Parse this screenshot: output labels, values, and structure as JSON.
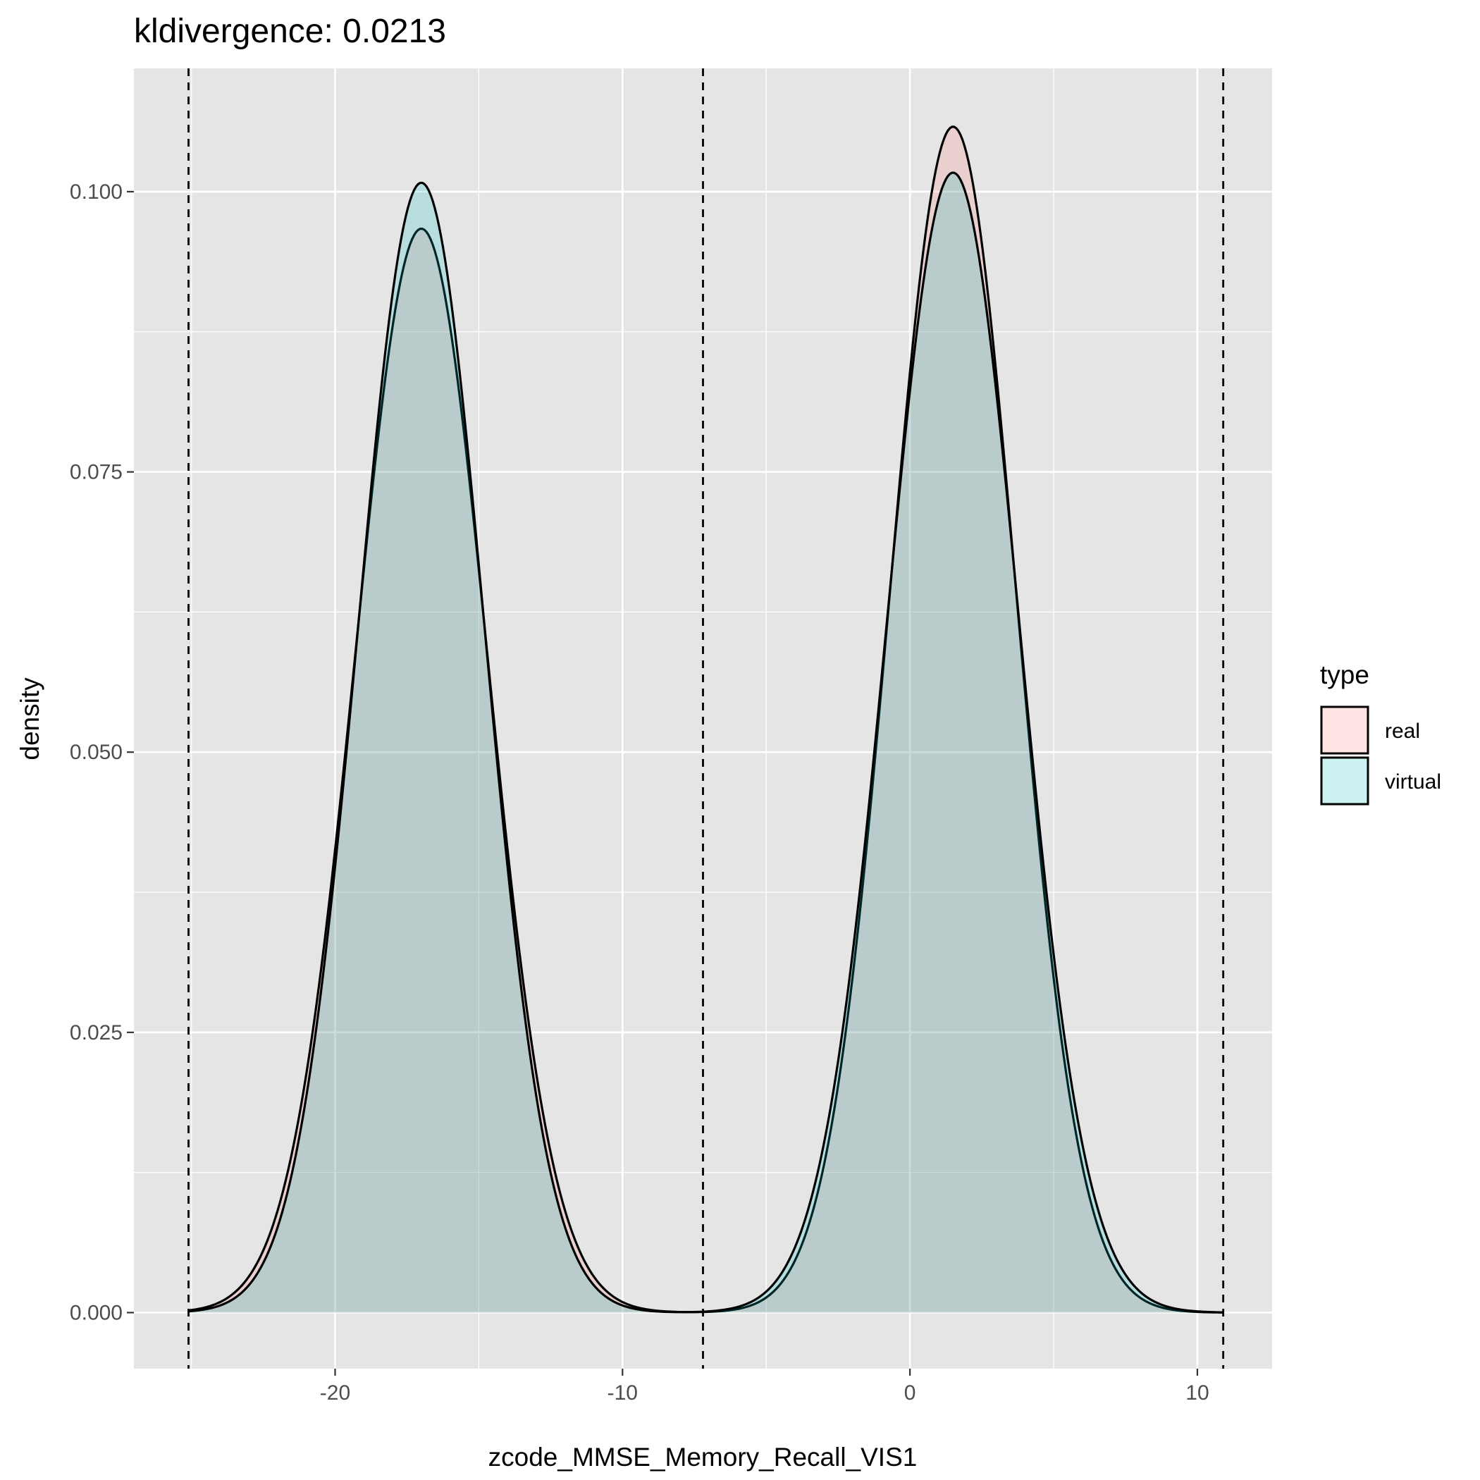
{
  "chart_data": {
    "type": "area",
    "title": "kldivergence: 0.0213",
    "xlabel": "zcode_MMSE_Memory_Recall_VIS1",
    "ylabel": "density",
    "xlim": [
      -27.0,
      12.6
    ],
    "ylim": [
      -0.005,
      0.111
    ],
    "x_ticks": [
      -20,
      -10,
      0,
      10
    ],
    "x_tick_labels": [
      "-20",
      "-10",
      "0",
      "10"
    ],
    "y_ticks": [
      0.0,
      0.025,
      0.05,
      0.075,
      0.1
    ],
    "y_tick_labels": [
      "0.000",
      "0.025",
      "0.050",
      "0.075",
      "0.100"
    ],
    "grid": true,
    "legend": {
      "title": "type",
      "position": "right"
    },
    "vlines": [
      -25.1,
      -7.2,
      10.9
    ],
    "series": [
      {
        "name": "real",
        "fill": "#F8766D",
        "components": [
          {
            "mean": -17.0,
            "sd": 2.3,
            "peak": 0.0967
          },
          {
            "mean": 1.5,
            "sd": 2.2,
            "peak": 0.1058
          }
        ]
      },
      {
        "name": "virtual",
        "fill": "#00BFC4",
        "components": [
          {
            "mean": -17.0,
            "sd": 2.2,
            "peak": 0.1008
          },
          {
            "mean": 1.5,
            "sd": 2.3,
            "peak": 0.1017
          }
        ]
      }
    ],
    "x_range_drawn": [
      -25.1,
      10.9
    ]
  },
  "colors": {
    "panel": "#E5E5E5",
    "grid_major": "#FFFFFF",
    "outline": "#000000"
  }
}
